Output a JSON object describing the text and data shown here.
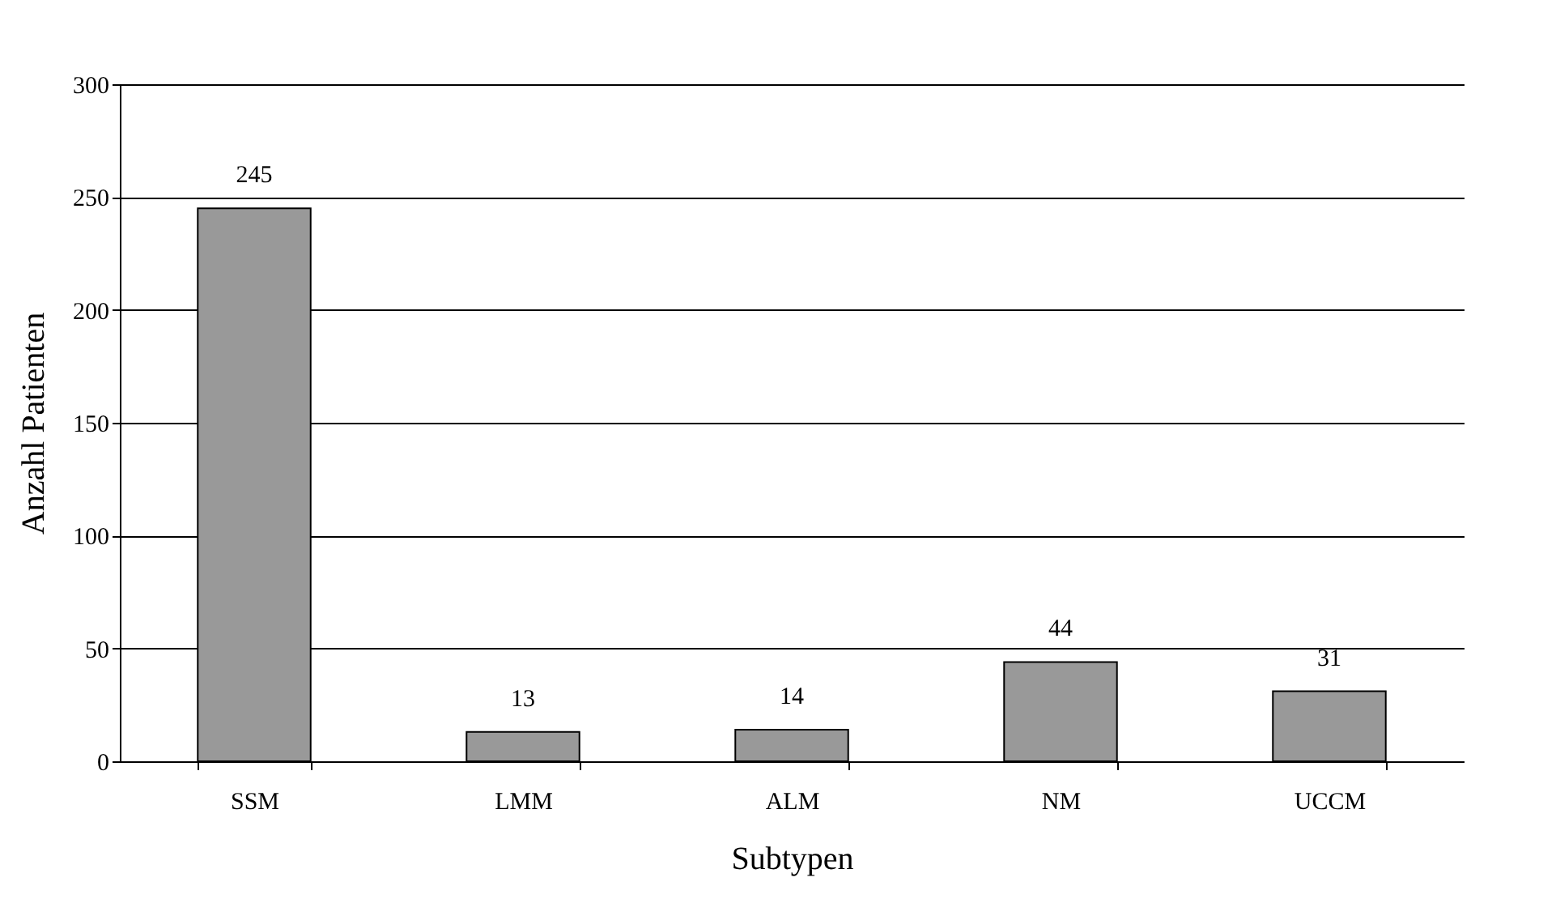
{
  "chart_data": {
    "type": "bar",
    "xlabel": "Subtypen",
    "ylabel": "Anzahl Patienten",
    "categories": [
      "SSM",
      "LMM",
      "ALM",
      "NM",
      "UCCM"
    ],
    "values": [
      245,
      13,
      14,
      44,
      31
    ],
    "color": "#999999",
    "ylim": [
      0,
      300
    ],
    "yticks": [
      0,
      50,
      100,
      150,
      200,
      250,
      300
    ],
    "grid": "y",
    "data_labels": true
  }
}
